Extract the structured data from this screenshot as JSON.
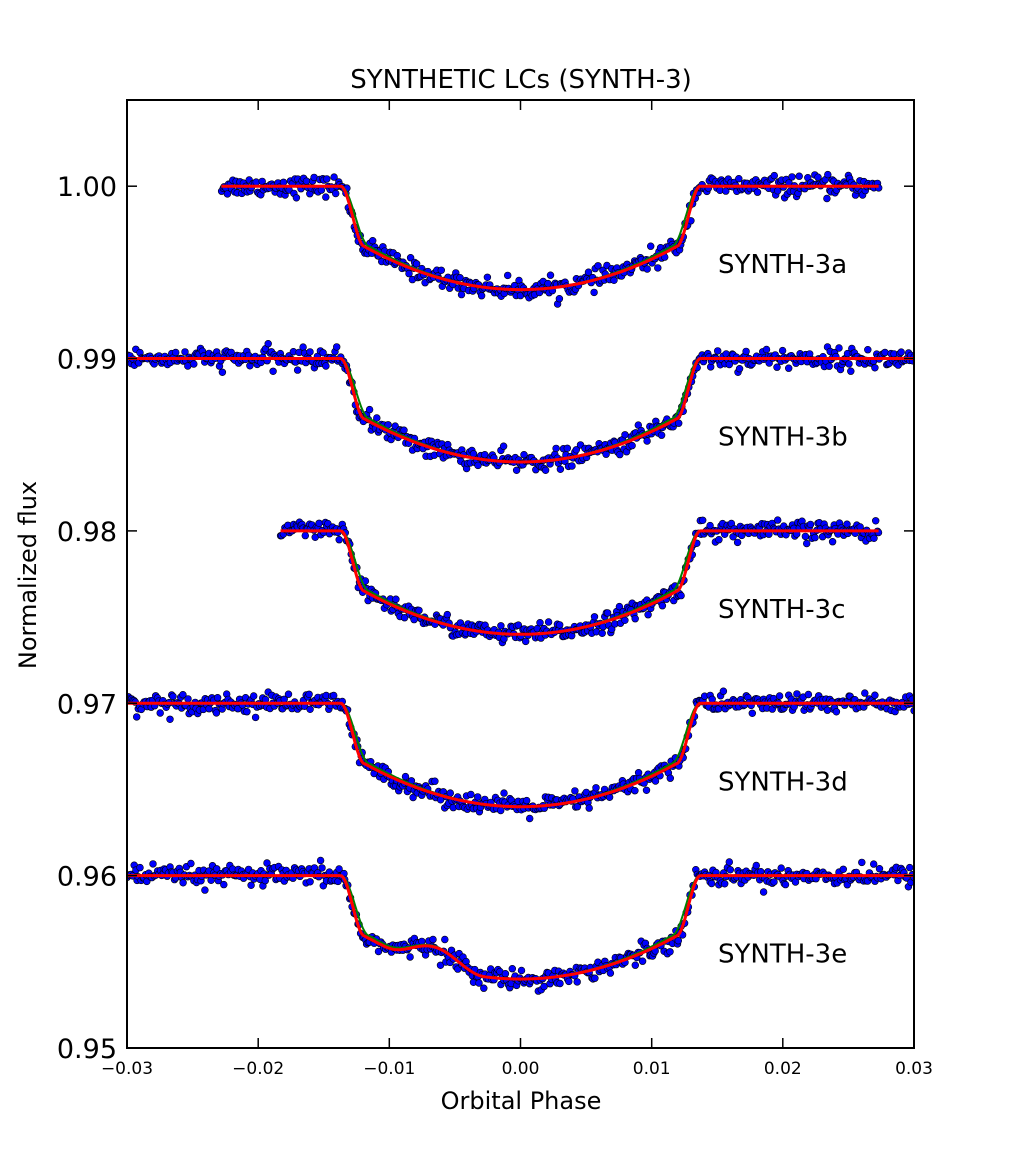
{
  "chart_data": {
    "type": "scatter",
    "title": "SYNTHETIC LCs (SYNTH-3)",
    "xlabel": "Orbital Phase",
    "ylabel": "Normalized flux",
    "xlim": [
      -0.03,
      0.03
    ],
    "ylim": [
      0.95,
      1.005
    ],
    "x_ticks": [
      -0.03,
      -0.02,
      -0.01,
      0.0,
      0.01,
      0.02,
      0.03
    ],
    "x_tick_labels": [
      "−0.03",
      "−0.02",
      "−0.01",
      "0.00",
      "0.01",
      "0.02",
      "0.03"
    ],
    "y_ticks": [
      0.95,
      0.96,
      0.97,
      0.98,
      0.99,
      1.0
    ],
    "y_tick_labels": [
      "0.95",
      "0.96",
      "0.97",
      "0.98",
      "0.99",
      "1.00"
    ],
    "colors": {
      "points": "#0000ff",
      "point_edge": "#000000",
      "fit_model": "#ff0000",
      "alt_model": "#008000"
    },
    "series": [
      {
        "name": "SYNTH-3a",
        "baseline": 1.0,
        "depth": 0.006,
        "x_start": -0.0228,
        "x_end": 0.0273,
        "bump": null
      },
      {
        "name": "SYNTH-3b",
        "baseline": 0.99,
        "depth": 0.006,
        "x_start": -0.03,
        "x_end": 0.03,
        "bump": null
      },
      {
        "name": "SYNTH-3c",
        "baseline": 0.98,
        "depth": 0.006,
        "x_start": -0.0183,
        "x_end": 0.0273,
        "bump": null
      },
      {
        "name": "SYNTH-3d",
        "baseline": 0.97,
        "depth": 0.006,
        "x_start": -0.03,
        "x_end": 0.03,
        "bump": null
      },
      {
        "name": "SYNTH-3e",
        "baseline": 0.96,
        "depth": 0.006,
        "x_start": -0.03,
        "x_end": 0.03,
        "bump": {
          "center": -0.0065,
          "half_width": 0.0038,
          "height": 0.0011
        }
      }
    ]
  }
}
